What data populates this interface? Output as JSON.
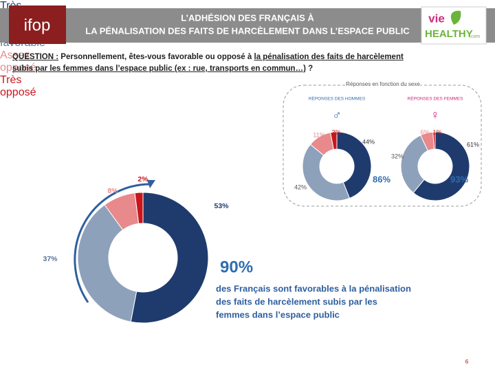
{
  "header": {
    "logo": "ifop",
    "title_line1": "L’ADHÉSION DES FRANÇAIS À",
    "title_line2": "LA PÉNALISATION DES FAITS DE HARCÈLEMENT DANS L’ESPACE PUBLIC",
    "partner_top": "vie",
    "partner_bottom": "HEALTHY",
    "partner_suffix": ".com"
  },
  "question": {
    "label": "QUESTION :",
    "text_before": "Personnellement, êtes-vous favorable ou opposé à ",
    "text_underlined": "la pénalisation des faits de harcèlement subis par les femmes dans l’espace public (ex : rue, transports en commun…)",
    "text_after": " ?"
  },
  "chart_data": [
    {
      "type": "donut",
      "categories": [
        "Très favorable",
        "Assez favorable",
        "Assez opposé",
        "Très opposé"
      ],
      "values": [
        53,
        37,
        8,
        2
      ],
      "value_labels": [
        "53%",
        "37%",
        "8%",
        "2%"
      ],
      "colors": [
        "#1f3b6e",
        "#8ea1bb",
        "#e8898c",
        "#c8161d"
      ]
    },
    {
      "type": "donut",
      "title": "RÉPONSES DES HOMMES",
      "symbol": "♂",
      "values": [
        44,
        42,
        11,
        3
      ],
      "value_labels": [
        "44%",
        "42%",
        "11%",
        "3%"
      ],
      "total_label": "86%",
      "colors": [
        "#1f3b6e",
        "#8ea1bb",
        "#e8898c",
        "#c8161d"
      ]
    },
    {
      "type": "donut",
      "title": "RÉPONSES DES FEMMES",
      "symbol": "♀",
      "values": [
        61,
        32,
        6,
        1
      ],
      "value_labels": [
        "61%",
        "32%",
        "6%",
        "1%"
      ],
      "total_label": "93%",
      "colors": [
        "#1f3b6e",
        "#8ea1bb",
        "#e8898c",
        "#c8161d"
      ]
    }
  ],
  "panel_title": "Réponses en fonction du sexe",
  "highlight": {
    "value": "90%",
    "lines": [
      "des Français sont favorables à la pénalisation",
      "des faits de harcèlement subis par les",
      "femmes dans l’espace public"
    ]
  },
  "page_number": "6"
}
